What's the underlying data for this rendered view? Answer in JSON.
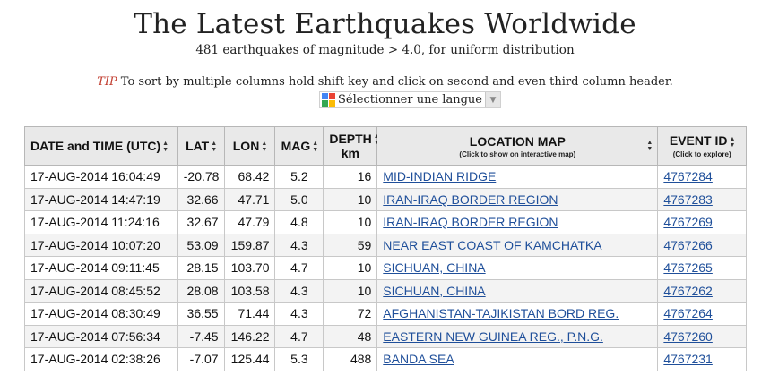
{
  "header": {
    "title": "The Latest Earthquakes Worldwide",
    "subtitle": "481 earthquakes of magnitude > 4.0, for uniform distribution",
    "tip_label": "TIP",
    "tip_text": "To sort by multiple columns hold shift key and click on second and even third column header.",
    "language_select": "Sélectionner une langue"
  },
  "table": {
    "columns": {
      "datetime": "DATE and TIME (UTC)",
      "lat": "LAT",
      "lon": "LON",
      "mag": "MAG",
      "depth": "DEPTH",
      "depth_unit": "km",
      "location": "LOCATION MAP",
      "location_hint": "(Click to show on interactive map)",
      "event": "EVENT ID",
      "event_hint": "(Click to explore)"
    },
    "rows": [
      {
        "datetime": "17-AUG-2014 16:04:49",
        "lat": "-20.78",
        "lon": "68.42",
        "mag": "5.2",
        "depth": "16",
        "location": "MID-INDIAN RIDGE",
        "event_id": "4767284"
      },
      {
        "datetime": "17-AUG-2014 14:47:19",
        "lat": "32.66",
        "lon": "47.71",
        "mag": "5.0",
        "depth": "10",
        "location": "IRAN-IRAQ BORDER REGION",
        "event_id": "4767283"
      },
      {
        "datetime": "17-AUG-2014 11:24:16",
        "lat": "32.67",
        "lon": "47.79",
        "mag": "4.8",
        "depth": "10",
        "location": "IRAN-IRAQ BORDER REGION",
        "event_id": "4767269"
      },
      {
        "datetime": "17-AUG-2014 10:07:20",
        "lat": "53.09",
        "lon": "159.87",
        "mag": "4.3",
        "depth": "59",
        "location": "NEAR EAST COAST OF KAMCHATKA",
        "event_id": "4767266"
      },
      {
        "datetime": "17-AUG-2014 09:11:45",
        "lat": "28.15",
        "lon": "103.70",
        "mag": "4.7",
        "depth": "10",
        "location": "SICHUAN, CHINA",
        "event_id": "4767265"
      },
      {
        "datetime": "17-AUG-2014 08:45:52",
        "lat": "28.08",
        "lon": "103.58",
        "mag": "4.3",
        "depth": "10",
        "location": "SICHUAN, CHINA",
        "event_id": "4767262"
      },
      {
        "datetime": "17-AUG-2014 08:30:49",
        "lat": "36.55",
        "lon": "71.44",
        "mag": "4.3",
        "depth": "72",
        "location": "AFGHANISTAN-TAJIKISTAN BORD REG.",
        "event_id": "4767264"
      },
      {
        "datetime": "17-AUG-2014 07:56:34",
        "lat": "-7.45",
        "lon": "146.22",
        "mag": "4.7",
        "depth": "48",
        "location": "EASTERN NEW GUINEA REG., P.N.G.",
        "event_id": "4767260"
      },
      {
        "datetime": "17-AUG-2014 02:38:26",
        "lat": "-7.07",
        "lon": "125.44",
        "mag": "5.3",
        "depth": "488",
        "location": "BANDA SEA",
        "event_id": "4767231"
      }
    ]
  },
  "colors": {
    "tip_label": "#c0392b",
    "link": "#1f4f9a",
    "header_bg": "#e9e9e9"
  }
}
